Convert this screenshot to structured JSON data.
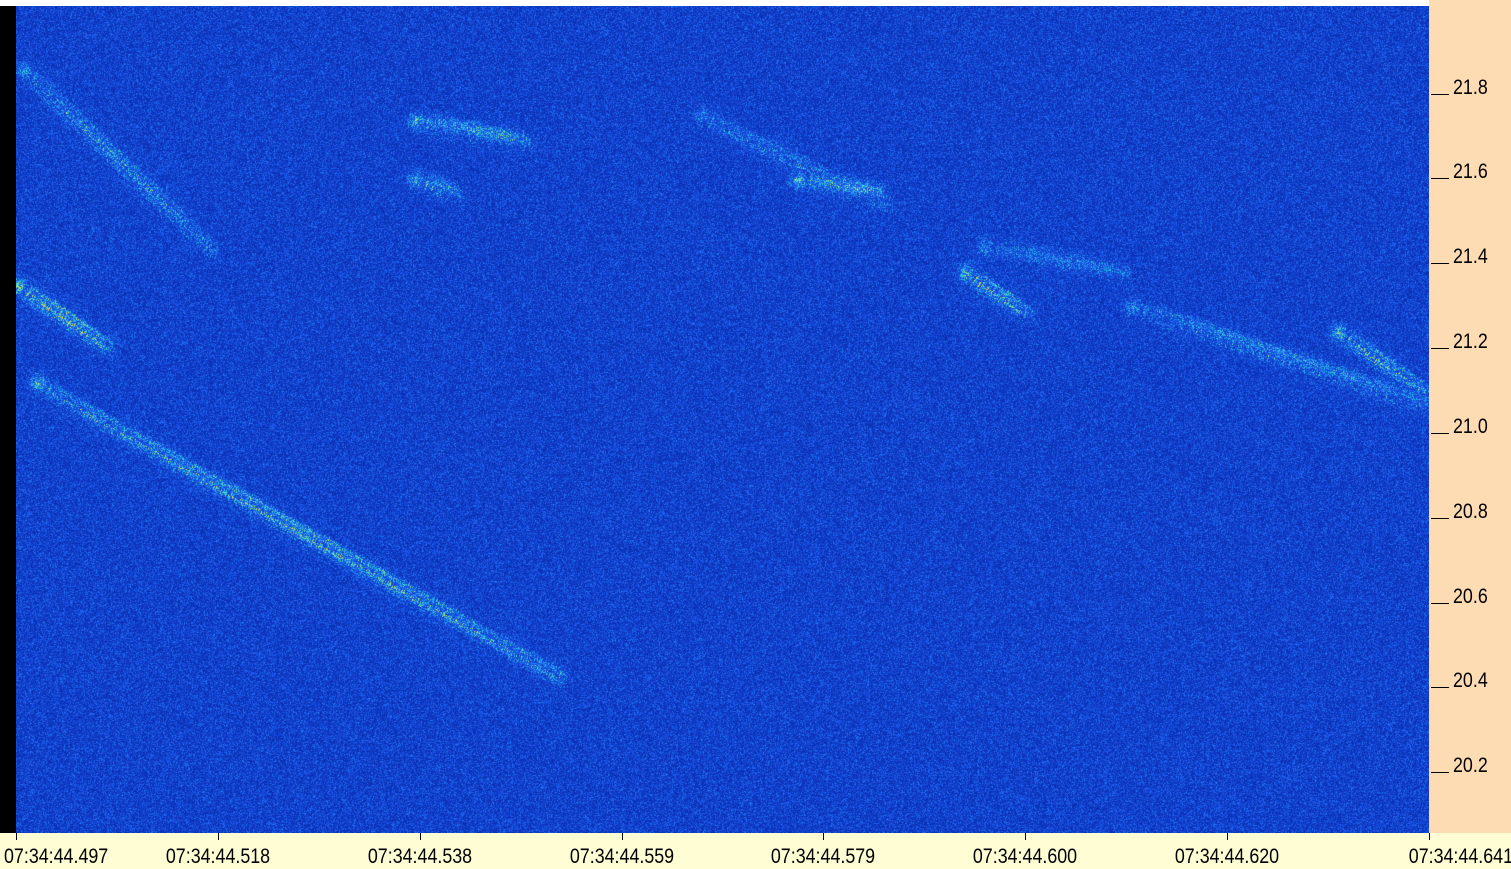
{
  "chart_data": {
    "type": "heatmap",
    "title": "",
    "xlabel": "",
    "ylabel": "",
    "x_tick_labels": [
      "07:34:44.497",
      "07:34:44.518",
      "07:34:44.538",
      "07:34:44.559",
      "07:34:44.579",
      "07:34:44.600",
      "07:34:44.620",
      "07:34:44.641"
    ],
    "y_tick_labels": [
      "21.8",
      "21.6",
      "21.4",
      "21.2",
      "21.0",
      "20.8",
      "20.6",
      "20.4",
      "20.2"
    ],
    "xlim": [
      "07:34:44.497",
      "07:34:44.641"
    ],
    "x_seconds_range": [
      44.497,
      44.641
    ],
    "ylim": [
      20.04,
      21.99
    ],
    "grid": false,
    "colormap": [
      "#0a2fb4",
      "#1e5cf0",
      "#28c8e8",
      "#c8f050",
      "#f0c020"
    ],
    "features": [
      {
        "x": [
          44.4978,
          44.5168
        ],
        "y": [
          21.84,
          21.42
        ],
        "intensity": 0.55
      },
      {
        "x": [
          44.4972,
          44.5062
        ],
        "y": [
          21.33,
          21.19
        ],
        "intensity": 0.95
      },
      {
        "x": [
          44.4992,
          44.5522
        ],
        "y": [
          21.1,
          20.41
        ],
        "intensity": 0.75
      },
      {
        "x": [
          44.5378,
          44.5488
        ],
        "y": [
          21.72,
          21.67
        ],
        "intensity": 0.7
      },
      {
        "x": [
          44.5378,
          44.5418
        ],
        "y": [
          21.58,
          21.55
        ],
        "intensity": 0.6
      },
      {
        "x": [
          44.5768,
          44.5848
        ],
        "y": [
          21.58,
          21.55
        ],
        "intensity": 0.8
      },
      {
        "x": [
          44.5668,
          44.5858
        ],
        "y": [
          21.73,
          21.52
        ],
        "intensity": 0.4
      },
      {
        "x": [
          44.5938,
          44.5998
        ],
        "y": [
          21.36,
          21.27
        ],
        "intensity": 0.8
      },
      {
        "x": [
          44.5958,
          44.6098
        ],
        "y": [
          21.42,
          21.36
        ],
        "intensity": 0.45
      },
      {
        "x": [
          44.6108,
          44.6408
        ],
        "y": [
          21.28,
          21.05
        ],
        "intensity": 0.55
      },
      {
        "x": [
          44.6318,
          44.6408
        ],
        "y": [
          21.22,
          21.08
        ],
        "intensity": 0.7
      }
    ]
  },
  "colors": {
    "background_low": "#0a30b8",
    "y_axis_panel": "#fddcb4",
    "x_axis_panel": "#fffdd3"
  }
}
